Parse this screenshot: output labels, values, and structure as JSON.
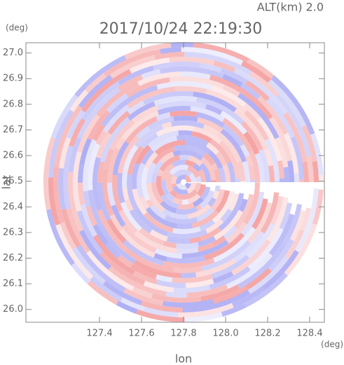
{
  "chart_data": {
    "type": "radar-ppi",
    "altitude_label": "ALT(km) 2.0",
    "title": "2017/10/24 22:19:30",
    "y_unit": "(deg)",
    "x_unit": "(deg)",
    "xlabel": "lon",
    "ylabel": "lat",
    "xlim": [
      127.05,
      128.47
    ],
    "ylim": [
      25.95,
      27.04
    ],
    "xticks": [
      127.4,
      127.6,
      127.8,
      {
        "value": 128.0,
        "label": "128.0"
      },
      128.2,
      128.4
    ],
    "yticks": [
      {
        "value": 26.0,
        "label": "26.0"
      },
      26.1,
      26.2,
      26.3,
      26.4,
      26.5,
      26.6,
      26.7,
      26.8,
      26.9,
      {
        "value": 27.0,
        "label": "27.0"
      }
    ]
  }
}
